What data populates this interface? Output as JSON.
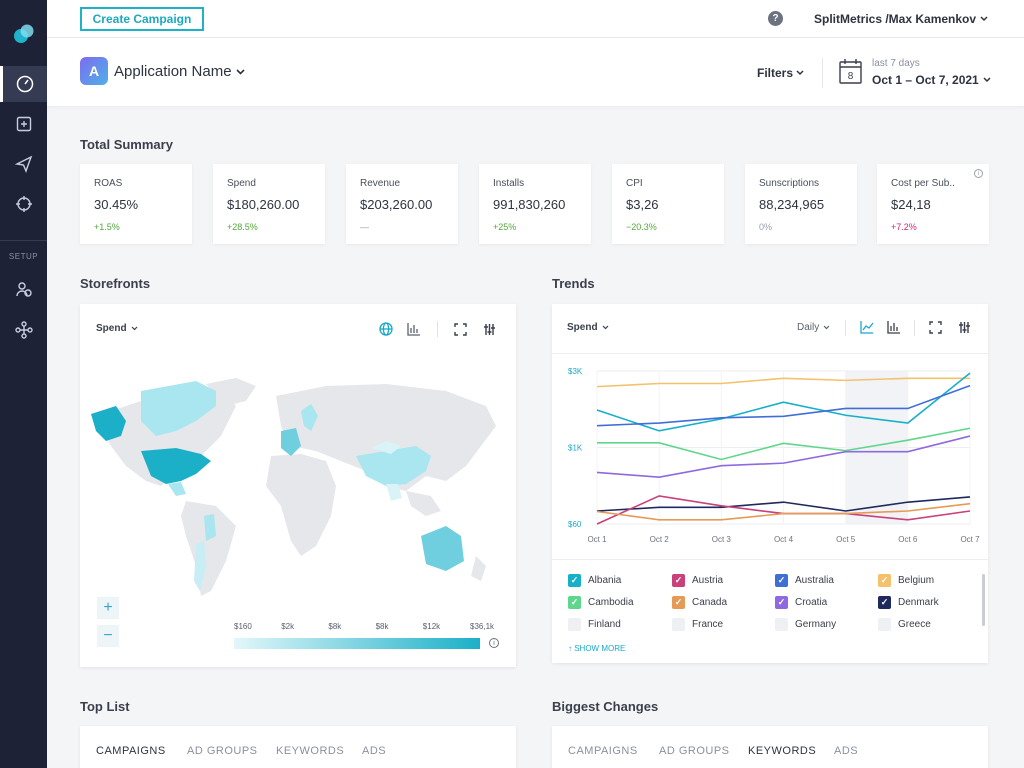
{
  "topbar": {
    "create_label": "Create Campaign",
    "help_glyph": "?",
    "user_label": "SplitMetrics /Max Kamenkov"
  },
  "sidebar": {
    "setup_label": "SETUP",
    "items": [
      "dashboard-icon",
      "add-app-icon",
      "send-icon",
      "target-icon",
      "users-icon",
      "integrations-icon"
    ]
  },
  "appbar": {
    "app_initial": "A",
    "app_name": "Application Name",
    "filters_label": "Filters",
    "calendar_day": "8",
    "date_sub": "last 7 days",
    "date_range": "Oct 1 – Oct 7, 2021"
  },
  "summary": {
    "title": "Total Summary",
    "cards": [
      {
        "label": "ROAS",
        "value": "30.45%",
        "change": "+1.5%",
        "change_color": "#53a83a"
      },
      {
        "label": "Spend",
        "value": "$180,260.00",
        "change": "+28.5%",
        "change_color": "#53a83a"
      },
      {
        "label": "Revenue",
        "value": "$203,260.00",
        "change": "—",
        "change_color": "#9aa0ad"
      },
      {
        "label": "Installs",
        "value": "991,830,260",
        "change": "+25%",
        "change_color": "#53a83a"
      },
      {
        "label": "CPI",
        "value": "$3,26",
        "change": "−20.3%",
        "change_color": "#53a83a"
      },
      {
        "label": "Sunscriptions",
        "value": "88,234,965",
        "change": "0%",
        "change_color": "#9aa0ad"
      },
      {
        "label": "Cost per Sub..",
        "value": "$24,18",
        "change": "+7.2%",
        "change_color": "#d1267a"
      }
    ]
  },
  "storefronts": {
    "title": "Storefronts",
    "metric": "Spend",
    "scale_labels": [
      "$160",
      "$2k",
      "$8k",
      "$8k",
      "$12k",
      "$36,1k"
    ],
    "zoom_in": "+",
    "zoom_out": "−",
    "info_glyph": "i"
  },
  "trends": {
    "title": "Trends",
    "metric": "Spend",
    "period": "Daily",
    "show_more": "↑ SHOW MORE",
    "legend": [
      {
        "name": "Albania",
        "color": "#17b0c9",
        "checked": true
      },
      {
        "name": "Austria",
        "color": "#c9407a",
        "checked": true
      },
      {
        "name": "Australia",
        "color": "#3f6fd6",
        "checked": true
      },
      {
        "name": "Belgium",
        "color": "#f4c26b",
        "checked": true
      },
      {
        "name": "Cambodia",
        "color": "#5fd68b",
        "checked": true
      },
      {
        "name": "Canada",
        "color": "#e59a55",
        "checked": true
      },
      {
        "name": "Croatia",
        "color": "#8f69e0",
        "checked": true
      },
      {
        "name": "Denmark",
        "color": "#1f2a5c",
        "checked": true
      },
      {
        "name": "Finland",
        "color": "#eef0f3",
        "checked": false
      },
      {
        "name": "France",
        "color": "#eef0f3",
        "checked": false
      },
      {
        "name": "Germany",
        "color": "#eef0f3",
        "checked": false
      },
      {
        "name": "Greece",
        "color": "#eef0f3",
        "checked": false
      }
    ]
  },
  "chart_data": {
    "type": "line",
    "x": [
      "Oct 1",
      "Oct 2",
      "Oct 3",
      "Oct 4",
      "Oct 5",
      "Oct 6",
      "Oct 7"
    ],
    "y_ticks": [
      "$3K",
      "$1K",
      "$60"
    ],
    "ylim": [
      60,
      3000
    ],
    "series": [
      {
        "name": "Belgium",
        "color": "#f4c26b",
        "values": [
          2700,
          2760,
          2760,
          2860,
          2820,
          2860,
          2860
        ]
      },
      {
        "name": "Albania",
        "color": "#17b0c9",
        "values": [
          2250,
          1850,
          2080,
          2400,
          2150,
          2000,
          2960
        ]
      },
      {
        "name": "Australia",
        "color": "#3f6fd6",
        "values": [
          1950,
          2000,
          2100,
          2130,
          2280,
          2280,
          2720
        ]
      },
      {
        "name": "Cambodia",
        "color": "#5fd68b",
        "values": [
          1620,
          1620,
          1300,
          1610,
          1470,
          1670,
          1900
        ]
      },
      {
        "name": "Croatia",
        "color": "#8f69e0",
        "values": [
          1050,
          960,
          1180,
          1230,
          1450,
          1450,
          1750
        ]
      },
      {
        "name": "Denmark",
        "color": "#1f2a5c",
        "values": [
          310,
          380,
          380,
          480,
          310,
          480,
          580
        ]
      },
      {
        "name": "Austria",
        "color": "#c9407a",
        "values": [
          60,
          600,
          410,
          260,
          260,
          140,
          310
        ]
      },
      {
        "name": "Canada",
        "color": "#e59a55",
        "values": [
          300,
          140,
          140,
          260,
          260,
          310,
          450
        ]
      }
    ],
    "grid": true,
    "highlight_range": [
      "Oct 5",
      "Oct 6"
    ]
  },
  "toplist": {
    "title": "Top List",
    "tabs": [
      "CAMPAIGNS",
      "AD GROUPS",
      "KEYWORDS",
      "ADS"
    ],
    "active_tab": 0
  },
  "changes": {
    "title": "Biggest Changes",
    "tabs": [
      "CAMPAIGNS",
      "AD GROUPS",
      "KEYWORDS",
      "ADS"
    ],
    "active_tab": 2
  }
}
